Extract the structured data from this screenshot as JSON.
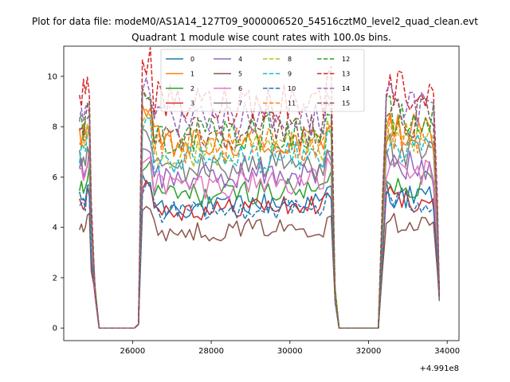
{
  "chart_data": {
    "type": "line",
    "suptitle": "Plot for data file: modeM0/AS1A14_127T09_9000006520_54516cztM0_level2_quad_clean.evt",
    "title": "Quadrant 1 module wise count rates with 100.0s bins.",
    "xlabel": "",
    "ylabel": "",
    "x_offset_label": "+4.991e8",
    "xlim": [
      24250,
      34300
    ],
    "ylim": [
      -0.5,
      11.2
    ],
    "xticks": [
      26000,
      28000,
      30000,
      32000,
      34000
    ],
    "xtick_labels": [
      "26000",
      "28000",
      "30000",
      "32000",
      "34000"
    ],
    "yticks": [
      0,
      2,
      4,
      6,
      8,
      10
    ],
    "ytick_labels": [
      "0",
      "2",
      "4",
      "6",
      "8",
      "10"
    ],
    "legend_position": "top-center",
    "legend_columns": 4,
    "segments": [
      {
        "start": 24650,
        "end": 24950
      },
      {
        "start": 26250,
        "end": 31050
      },
      {
        "start": 32350,
        "end": 33750
      }
    ],
    "gaps": [
      {
        "x": [
          24950,
          25050,
          25150,
          26050,
          26150,
          26250
        ]
      },
      {
        "x": [
          31050,
          31150,
          31250,
          32250,
          32350
        ]
      }
    ],
    "series": [
      {
        "name": "0",
        "color": "#1f77b4",
        "style": "solid",
        "level": 5.1
      },
      {
        "name": "1",
        "color": "#ff7f0e",
        "style": "solid",
        "level": 7.6
      },
      {
        "name": "2",
        "color": "#2ca02c",
        "style": "solid",
        "level": 5.6
      },
      {
        "name": "3",
        "color": "#d62728",
        "style": "solid",
        "level": 5.0
      },
      {
        "name": "4",
        "color": "#9467bd",
        "style": "solid",
        "level": 6.3
      },
      {
        "name": "5",
        "color": "#8c564b",
        "style": "solid",
        "level": 4.1
      },
      {
        "name": "6",
        "color": "#e377c2",
        "style": "solid",
        "level": 6.0
      },
      {
        "name": "7",
        "color": "#7f7f7f",
        "style": "solid",
        "level": 6.7
      },
      {
        "name": "8",
        "color": "#bcbd22",
        "style": "dashed",
        "level": 7.3
      },
      {
        "name": "9",
        "color": "#17becf",
        "style": "dashed",
        "level": 7.0
      },
      {
        "name": "10",
        "color": "#1f77b4",
        "style": "dashed",
        "level": 4.9
      },
      {
        "name": "11",
        "color": "#ff7f0e",
        "style": "dashed",
        "level": 7.5
      },
      {
        "name": "12",
        "color": "#2ca02c",
        "style": "dashed",
        "level": 8.0
      },
      {
        "name": "13",
        "color": "#d62728",
        "style": "dashed",
        "level": 9.3
      },
      {
        "name": "14",
        "color": "#9467bd",
        "style": "dashed",
        "level": 8.5
      },
      {
        "name": "15",
        "color": "#8c564b",
        "style": "dashed",
        "level": 8.2
      }
    ]
  }
}
